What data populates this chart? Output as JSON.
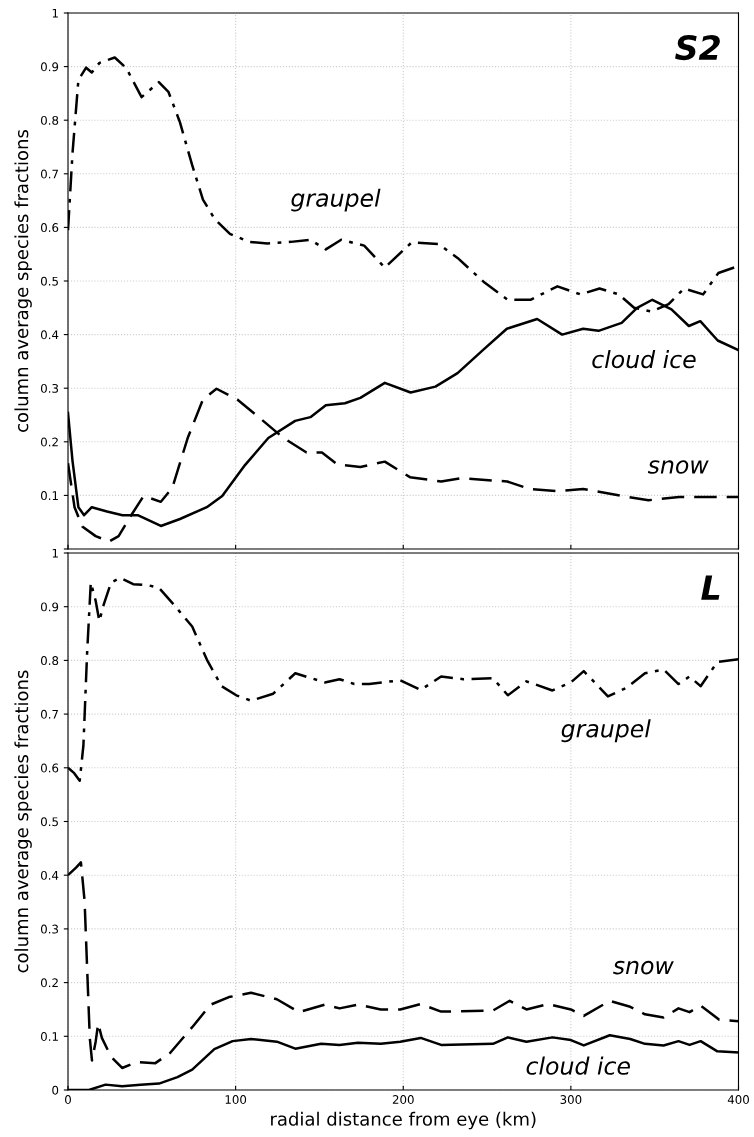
{
  "chart_data": [
    {
      "type": "line",
      "title": "S2",
      "ylabel": "column average species fractions",
      "xlim": [
        0,
        400
      ],
      "ylim": [
        0,
        1
      ],
      "xticks": [
        0,
        100,
        200,
        300,
        400
      ],
      "yticks": [
        {
          "value": 0,
          "label": null
        },
        0.1,
        0.2,
        0.3,
        0.4,
        0.5,
        0.6,
        0.7,
        0.8,
        0.9,
        1
      ],
      "tick_labels": "y",
      "grid": true,
      "legend": false,
      "series": [
        {
          "name": "graupel",
          "color": "#000000",
          "line_style": "dashdot",
          "x": [
            0,
            2.7,
            6.2,
            10.8,
            14.2,
            18.8,
            27.9,
            34.8,
            43.9,
            54.2,
            59.9,
            66.8,
            74,
            80.5,
            87.4,
            96.6,
            108,
            119,
            133,
            144.5,
            153.8,
            163,
            176.7,
            189,
            205,
            221,
            232.4,
            248.5,
            262.2,
            275.9,
            292,
            305.7,
            317.1,
            328.6,
            337.7,
            348,
            358.3,
            367.5,
            378.9,
            388,
            400
          ],
          "values": [
            0.595,
            0.739,
            0.875,
            0.898,
            0.889,
            0.907,
            0.917,
            0.897,
            0.843,
            0.871,
            0.853,
            0.796,
            0.717,
            0.652,
            0.616,
            0.588,
            0.573,
            0.57,
            0.573,
            0.577,
            0.559,
            0.577,
            0.566,
            0.525,
            0.572,
            0.569,
            0.543,
            0.497,
            0.465,
            0.465,
            0.49,
            0.475,
            0.486,
            0.475,
            0.45,
            0.443,
            0.457,
            0.486,
            0.475,
            0.515,
            0.528
          ]
        },
        {
          "name": "cloud ice",
          "color": "#000000",
          "line_style": "solid",
          "x": [
            0,
            2.7,
            6.2,
            9.6,
            14.2,
            23.3,
            32.5,
            41.6,
            55.4,
            66.8,
            82.8,
            92,
            105.7,
            119.5,
            135.5,
            144.6,
            153.8,
            165.2,
            174.4,
            189,
            204.4,
            219.2,
            232.4,
            247.5,
            261.8,
            279.9,
            294.8,
            307.3,
            316.5,
            330.3,
            339.5,
            348.6,
            360,
            370.4,
            377.2,
            387.6,
            400
          ],
          "values": [
            0.254,
            0.164,
            0.078,
            0.063,
            0.078,
            0.07,
            0.063,
            0.063,
            0.043,
            0.056,
            0.078,
            0.099,
            0.157,
            0.207,
            0.239,
            0.246,
            0.268,
            0.272,
            0.282,
            0.31,
            0.292,
            0.303,
            0.328,
            0.371,
            0.411,
            0.429,
            0.4,
            0.411,
            0.407,
            0.422,
            0.45,
            0.465,
            0.447,
            0.416,
            0.425,
            0.389,
            0.371
          ]
        },
        {
          "name": "snow",
          "color": "#000000",
          "line_style": "dashed",
          "x": [
            0,
            3.9,
            8.5,
            16.5,
            24.5,
            30.2,
            37.1,
            45.1,
            55.4,
            62.2,
            71.4,
            80.5,
            88.6,
            101,
            114.9,
            128.6,
            142.3,
            151.5,
            160.6,
            174.4,
            189,
            204,
            222.6,
            234,
            262,
            275.5,
            291.5,
            307.3,
            330.3,
            346.3,
            364.6,
            400
          ],
          "values": [
            0.16,
            0.078,
            0.042,
            0.024,
            0.014,
            0.024,
            0.06,
            0.099,
            0.088,
            0.114,
            0.207,
            0.279,
            0.299,
            0.279,
            0.243,
            0.207,
            0.18,
            0.18,
            0.158,
            0.153,
            0.163,
            0.134,
            0.126,
            0.132,
            0.126,
            0.112,
            0.108,
            0.112,
            0.099,
            0.091,
            0.097,
            0.097
          ]
        }
      ]
    },
    {
      "type": "line",
      "title": "L",
      "xlabel": "radial distance from eye (km)",
      "ylabel": "column average species fractions",
      "xlim": [
        0,
        400
      ],
      "ylim": [
        0,
        1
      ],
      "xticks": [
        0,
        100,
        200,
        300,
        400
      ],
      "yticks": [
        0,
        0.1,
        0.2,
        0.3,
        0.4,
        0.5,
        0.6,
        0.7,
        0.8,
        0.9,
        1
      ],
      "grid": true,
      "legend": false,
      "series": [
        {
          "name": "graupel",
          "color": "#000000",
          "line_style": "dashdot",
          "x": [
            0,
            3.7,
            7,
            9.2,
            11.4,
            13.6,
            16.5,
            18.7,
            21.3,
            25.7,
            31.2,
            38.9,
            47.7,
            54.3,
            63.1,
            74.1,
            82.9,
            91.6,
            100.4,
            109.2,
            122.4,
            135.6,
            153.2,
            162,
            170.8,
            179.6,
            198.2,
            210.4,
            222.6,
            235.8,
            253.5,
            262.4,
            273.5,
            289,
            300,
            307.7,
            322.1,
            333.2,
            344.2,
            355.3,
            364.2,
            370.8,
            377.4,
            387.4,
            400
          ],
          "values": [
            0.6,
            0.59,
            0.576,
            0.642,
            0.814,
            0.945,
            0.911,
            0.873,
            0.904,
            0.945,
            0.954,
            0.942,
            0.94,
            0.935,
            0.904,
            0.863,
            0.801,
            0.752,
            0.735,
            0.725,
            0.738,
            0.776,
            0.759,
            0.765,
            0.756,
            0.756,
            0.763,
            0.745,
            0.77,
            0.765,
            0.767,
            0.735,
            0.761,
            0.744,
            0.759,
            0.78,
            0.733,
            0.749,
            0.776,
            0.783,
            0.756,
            0.77,
            0.752,
            0.797,
            0.802
          ]
        },
        {
          "name": "snow",
          "color": "#000000",
          "line_style": "dashed",
          "x": [
            0,
            4.8,
            7.7,
            9.9,
            11.4,
            13,
            14.3,
            16.5,
            18,
            20.2,
            25.7,
            32.3,
            41.1,
            52.1,
            60.9,
            74.1,
            85.1,
            96,
            109.2,
            124.6,
            137.8,
            153.2,
            162,
            173,
            186.6,
            198.2,
            210.4,
            222.6,
            253.5,
            263.5,
            273.5,
            286.7,
            300,
            307.7,
            323.2,
            335.4,
            344.2,
            355.3,
            364.2,
            370.8,
            377.4,
            388.5,
            400
          ],
          "values": [
            0.4,
            0.414,
            0.424,
            0.352,
            0.228,
            0.097,
            0.055,
            0.09,
            0.124,
            0.097,
            0.062,
            0.041,
            0.052,
            0.05,
            0.069,
            0.117,
            0.159,
            0.173,
            0.181,
            0.169,
            0.145,
            0.159,
            0.152,
            0.159,
            0.15,
            0.15,
            0.16,
            0.146,
            0.148,
            0.166,
            0.15,
            0.16,
            0.15,
            0.138,
            0.166,
            0.155,
            0.141,
            0.135,
            0.152,
            0.145,
            0.157,
            0.131,
            0.128
          ]
        },
        {
          "name": "cloud ice",
          "color": "#000000",
          "line_style": "solid",
          "x": [
            0,
            12.5,
            22.4,
            32.3,
            43.3,
            54.3,
            65.3,
            74.1,
            87.3,
            98.2,
            109.2,
            124.6,
            135.6,
            151,
            162,
            173,
            186.6,
            198.2,
            210.4,
            222.6,
            253.5,
            262.4,
            273.5,
            289,
            300,
            307.7,
            323.2,
            335.4,
            344.2,
            355.3,
            364.2,
            370.8,
            377.4,
            387.4,
            400
          ],
          "values": [
            0,
            0,
            0.01,
            0.007,
            0.01,
            0.012,
            0.024,
            0.038,
            0.076,
            0.091,
            0.095,
            0.09,
            0.077,
            0.086,
            0.084,
            0.088,
            0.086,
            0.09,
            0.097,
            0.084,
            0.086,
            0.098,
            0.09,
            0.098,
            0.093,
            0.083,
            0.102,
            0.095,
            0.086,
            0.083,
            0.091,
            0.084,
            0.091,
            0.072,
            0.07
          ]
        }
      ]
    }
  ]
}
